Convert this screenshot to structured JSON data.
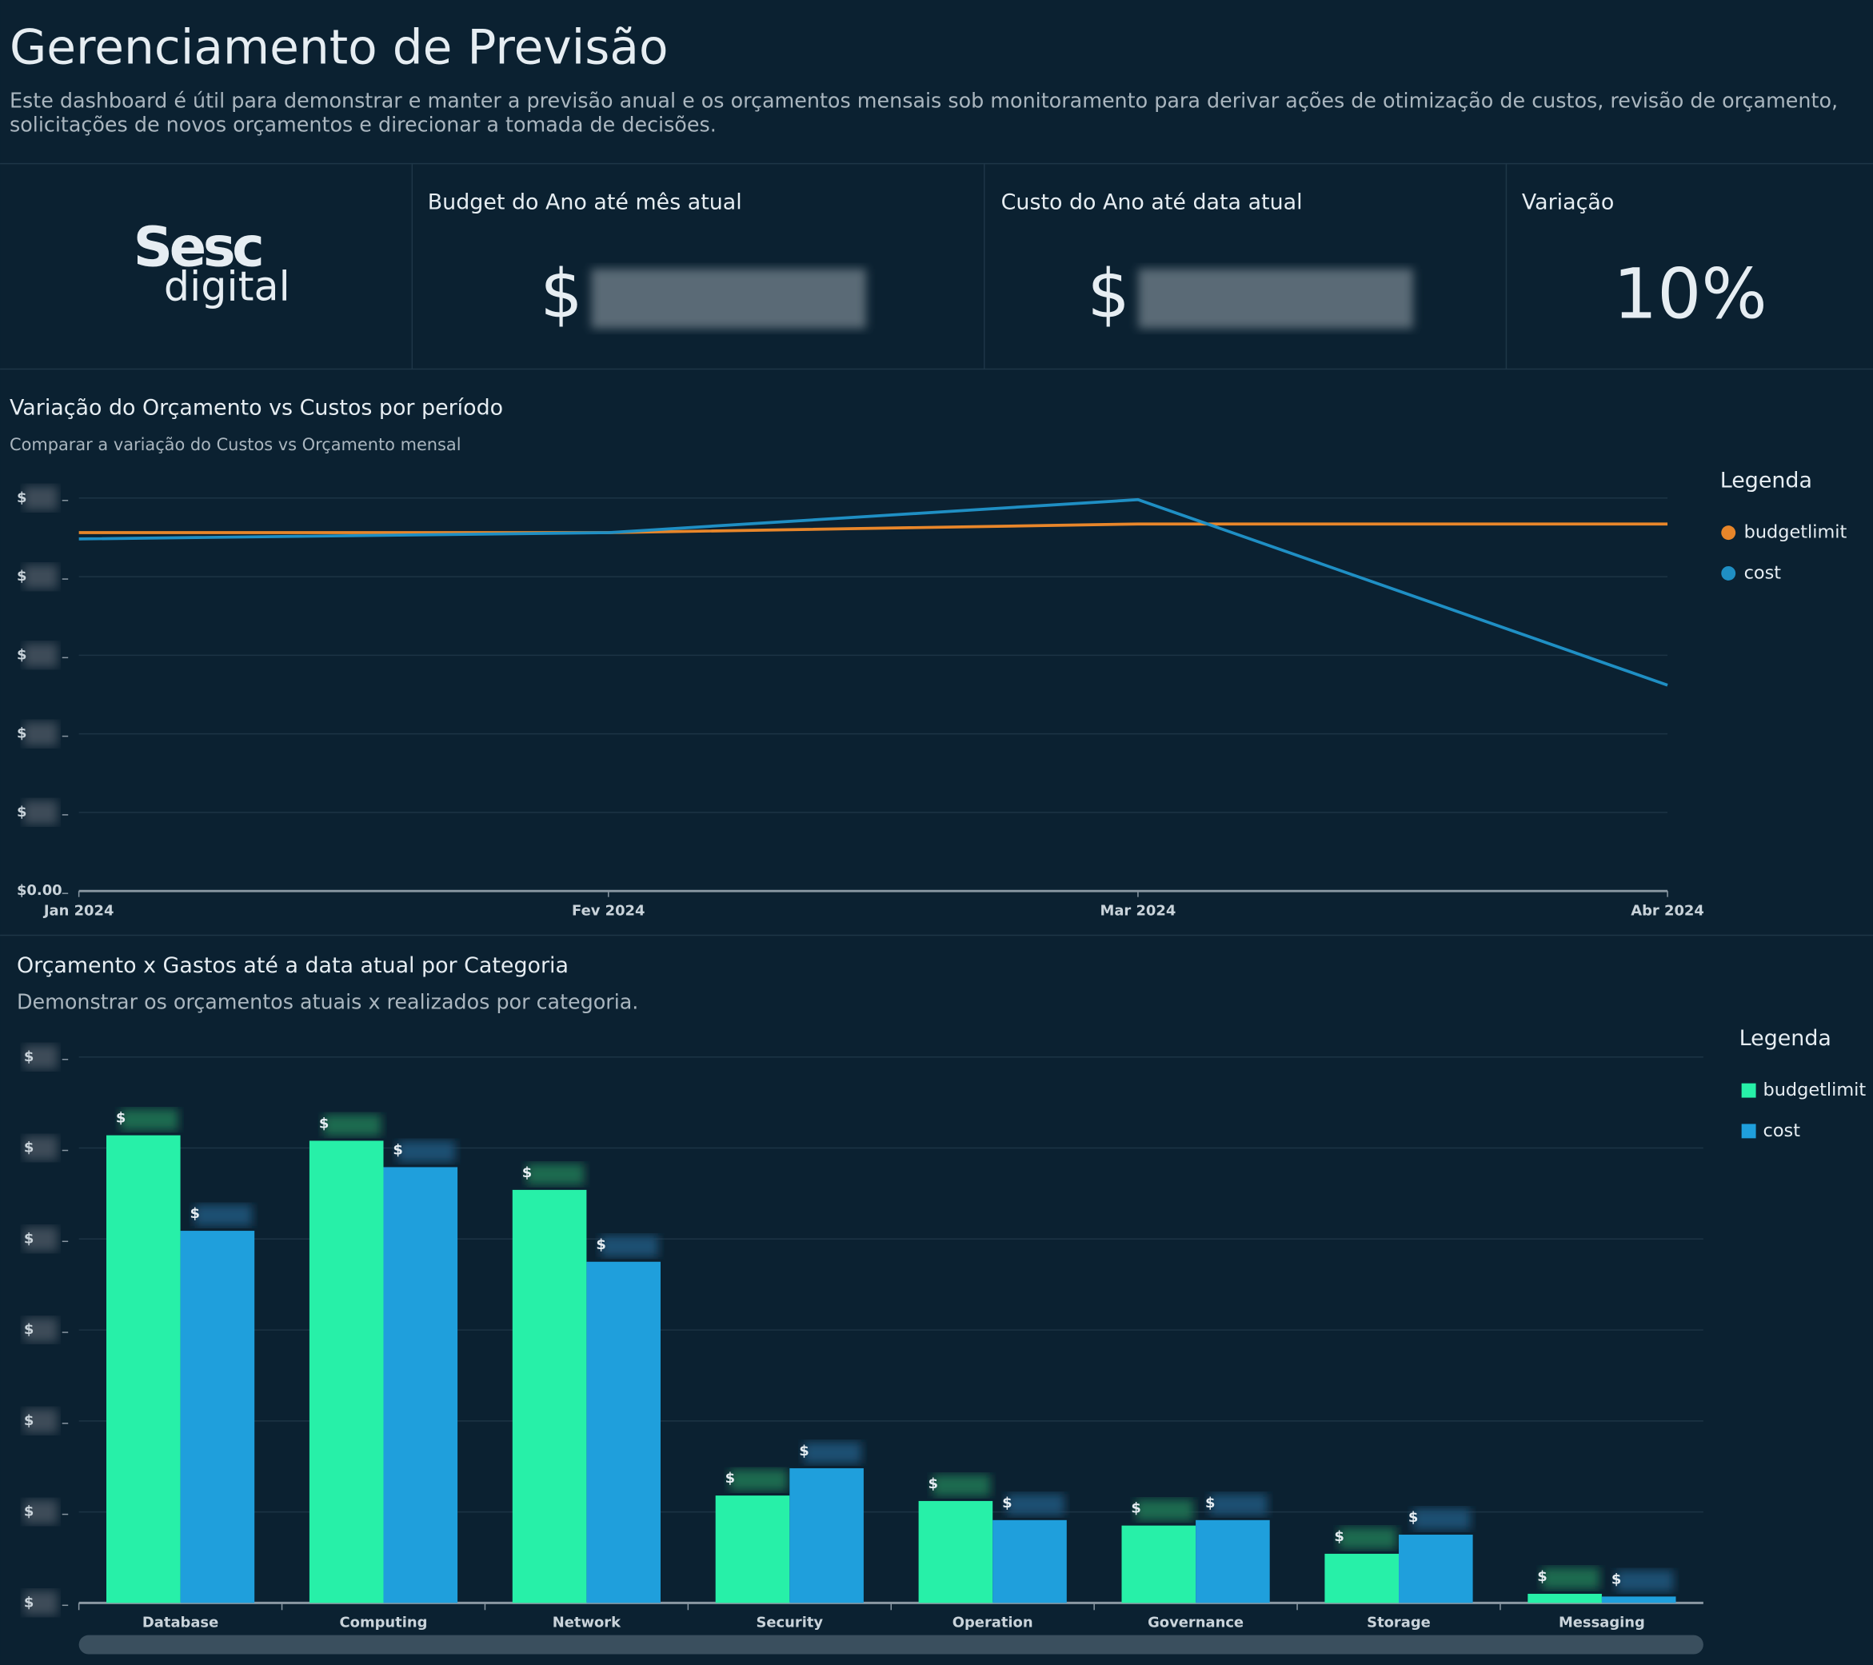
{
  "header": {
    "title": "Gerenciamento de Previsão",
    "description": "Este dashboard é útil para demonstrar e manter a previsão anual e os orçamentos mensais sob monitoramento para derivar ações de otimização de custos, revisão de orçamento, solicitações de novos orçamentos e direcionar a tomada de decisões."
  },
  "logo": {
    "top": "Sesc",
    "bottom": "digital"
  },
  "kpis": [
    {
      "title": "Budget do Ano até mês atual",
      "value": "$"
    },
    {
      "title": "Custo do Ano até data atual",
      "value": "$"
    },
    {
      "title": "Variação",
      "value": "10%"
    }
  ],
  "chart_data": [
    {
      "type": "line",
      "title": "Variação do Orçamento vs Custos por período",
      "subtitle": "Comparar a variação do Custos vs Orçamento mensal",
      "legend_title": "Legenda",
      "categories": [
        "Jan 2024",
        "Fev 2024",
        "Mar 2024",
        "Abr 2024"
      ],
      "series": [
        {
          "name": "budgetlimit",
          "color": "#e8862a",
          "values": [
            4.56,
            4.56,
            4.67,
            4.67
          ]
        },
        {
          "name": "cost",
          "color": "#1f8fc4",
          "values": [
            4.48,
            4.56,
            4.98,
            2.62
          ]
        }
      ],
      "ylim": [
        0,
        5
      ],
      "yticks": [
        {
          "value": 0,
          "label": "$0.00"
        },
        {
          "value": 1,
          "label": "$"
        },
        {
          "value": 2,
          "label": "$"
        },
        {
          "value": 3,
          "label": "$"
        },
        {
          "value": 4,
          "label": "$"
        },
        {
          "value": 5,
          "label": "$"
        }
      ],
      "grid": true
    },
    {
      "type": "bar",
      "title": "Orçamento x Gastos até a data atual por Categoria",
      "subtitle": "Demonstrar os orçamentos atuais x realizados por categoria.",
      "legend_title": "Legenda",
      "categories": [
        "Database",
        "Computing",
        "Network",
        "Security",
        "Operation",
        "Governance",
        "Storage",
        "Messaging"
      ],
      "series": [
        {
          "name": "budgetlimit",
          "color": "#27f0a8",
          "values": [
            5.14,
            5.08,
            4.54,
            1.18,
            1.12,
            0.85,
            0.54,
            0.1
          ],
          "value_labels": [
            "$",
            "$",
            "$",
            "$",
            "$",
            "$",
            "$",
            "$"
          ]
        },
        {
          "name": "cost",
          "color": "#1f9fdc",
          "values": [
            4.09,
            4.79,
            3.75,
            1.48,
            0.91,
            0.91,
            0.75,
            0.07
          ],
          "value_labels": [
            "$",
            "$",
            "$",
            "$",
            "$",
            "$",
            "$",
            "$"
          ]
        }
      ],
      "ylim": [
        0,
        6
      ],
      "yticks": [
        {
          "value": 0,
          "label": "$"
        },
        {
          "value": 1,
          "label": "$"
        },
        {
          "value": 2,
          "label": "$"
        },
        {
          "value": 3,
          "label": "$"
        },
        {
          "value": 4,
          "label": "$"
        },
        {
          "value": 5,
          "label": "$"
        },
        {
          "value": 6,
          "label": "$"
        }
      ],
      "grid": true
    }
  ]
}
